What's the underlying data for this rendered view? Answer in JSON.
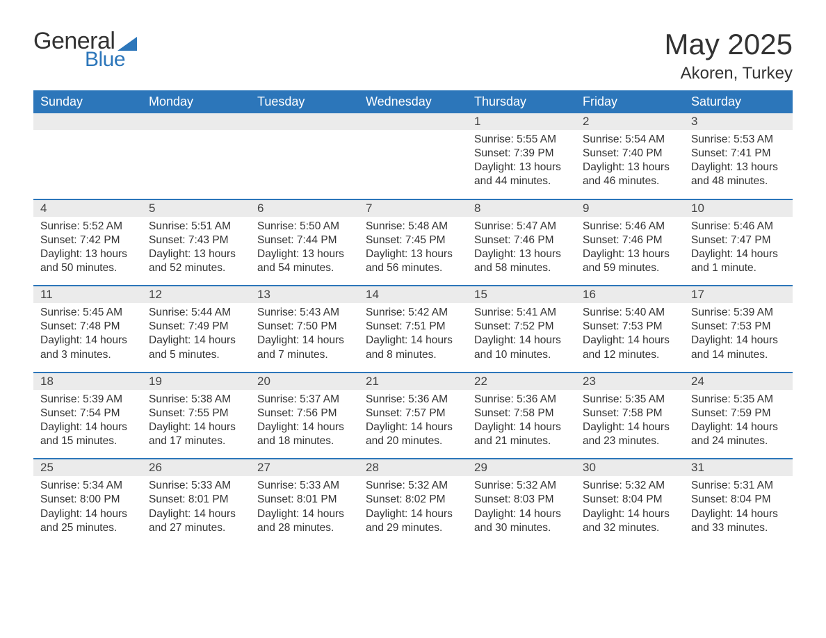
{
  "logo": {
    "word1": "General",
    "word2": "Blue"
  },
  "title": "May 2025",
  "location": "Akoren, Turkey",
  "weekdays": [
    "Sunday",
    "Monday",
    "Tuesday",
    "Wednesday",
    "Thursday",
    "Friday",
    "Saturday"
  ],
  "colors": {
    "header_bg": "#2c76ba",
    "header_text": "#ffffff",
    "daynum_bg": "#ebebeb",
    "row_border": "#2c76ba",
    "body_text": "#333333",
    "logo_dark": "#333333",
    "logo_blue": "#2c76ba"
  },
  "weeks": [
    [
      {
        "empty": true
      },
      {
        "empty": true
      },
      {
        "empty": true
      },
      {
        "empty": true
      },
      {
        "day": "1",
        "sunrise": "Sunrise: 5:55 AM",
        "sunset": "Sunset: 7:39 PM",
        "daylight1": "Daylight: 13 hours",
        "daylight2": "and 44 minutes."
      },
      {
        "day": "2",
        "sunrise": "Sunrise: 5:54 AM",
        "sunset": "Sunset: 7:40 PM",
        "daylight1": "Daylight: 13 hours",
        "daylight2": "and 46 minutes."
      },
      {
        "day": "3",
        "sunrise": "Sunrise: 5:53 AM",
        "sunset": "Sunset: 7:41 PM",
        "daylight1": "Daylight: 13 hours",
        "daylight2": "and 48 minutes."
      }
    ],
    [
      {
        "day": "4",
        "sunrise": "Sunrise: 5:52 AM",
        "sunset": "Sunset: 7:42 PM",
        "daylight1": "Daylight: 13 hours",
        "daylight2": "and 50 minutes."
      },
      {
        "day": "5",
        "sunrise": "Sunrise: 5:51 AM",
        "sunset": "Sunset: 7:43 PM",
        "daylight1": "Daylight: 13 hours",
        "daylight2": "and 52 minutes."
      },
      {
        "day": "6",
        "sunrise": "Sunrise: 5:50 AM",
        "sunset": "Sunset: 7:44 PM",
        "daylight1": "Daylight: 13 hours",
        "daylight2": "and 54 minutes."
      },
      {
        "day": "7",
        "sunrise": "Sunrise: 5:48 AM",
        "sunset": "Sunset: 7:45 PM",
        "daylight1": "Daylight: 13 hours",
        "daylight2": "and 56 minutes."
      },
      {
        "day": "8",
        "sunrise": "Sunrise: 5:47 AM",
        "sunset": "Sunset: 7:46 PM",
        "daylight1": "Daylight: 13 hours",
        "daylight2": "and 58 minutes."
      },
      {
        "day": "9",
        "sunrise": "Sunrise: 5:46 AM",
        "sunset": "Sunset: 7:46 PM",
        "daylight1": "Daylight: 13 hours",
        "daylight2": "and 59 minutes."
      },
      {
        "day": "10",
        "sunrise": "Sunrise: 5:46 AM",
        "sunset": "Sunset: 7:47 PM",
        "daylight1": "Daylight: 14 hours",
        "daylight2": "and 1 minute."
      }
    ],
    [
      {
        "day": "11",
        "sunrise": "Sunrise: 5:45 AM",
        "sunset": "Sunset: 7:48 PM",
        "daylight1": "Daylight: 14 hours",
        "daylight2": "and 3 minutes."
      },
      {
        "day": "12",
        "sunrise": "Sunrise: 5:44 AM",
        "sunset": "Sunset: 7:49 PM",
        "daylight1": "Daylight: 14 hours",
        "daylight2": "and 5 minutes."
      },
      {
        "day": "13",
        "sunrise": "Sunrise: 5:43 AM",
        "sunset": "Sunset: 7:50 PM",
        "daylight1": "Daylight: 14 hours",
        "daylight2": "and 7 minutes."
      },
      {
        "day": "14",
        "sunrise": "Sunrise: 5:42 AM",
        "sunset": "Sunset: 7:51 PM",
        "daylight1": "Daylight: 14 hours",
        "daylight2": "and 8 minutes."
      },
      {
        "day": "15",
        "sunrise": "Sunrise: 5:41 AM",
        "sunset": "Sunset: 7:52 PM",
        "daylight1": "Daylight: 14 hours",
        "daylight2": "and 10 minutes."
      },
      {
        "day": "16",
        "sunrise": "Sunrise: 5:40 AM",
        "sunset": "Sunset: 7:53 PM",
        "daylight1": "Daylight: 14 hours",
        "daylight2": "and 12 minutes."
      },
      {
        "day": "17",
        "sunrise": "Sunrise: 5:39 AM",
        "sunset": "Sunset: 7:53 PM",
        "daylight1": "Daylight: 14 hours",
        "daylight2": "and 14 minutes."
      }
    ],
    [
      {
        "day": "18",
        "sunrise": "Sunrise: 5:39 AM",
        "sunset": "Sunset: 7:54 PM",
        "daylight1": "Daylight: 14 hours",
        "daylight2": "and 15 minutes."
      },
      {
        "day": "19",
        "sunrise": "Sunrise: 5:38 AM",
        "sunset": "Sunset: 7:55 PM",
        "daylight1": "Daylight: 14 hours",
        "daylight2": "and 17 minutes."
      },
      {
        "day": "20",
        "sunrise": "Sunrise: 5:37 AM",
        "sunset": "Sunset: 7:56 PM",
        "daylight1": "Daylight: 14 hours",
        "daylight2": "and 18 minutes."
      },
      {
        "day": "21",
        "sunrise": "Sunrise: 5:36 AM",
        "sunset": "Sunset: 7:57 PM",
        "daylight1": "Daylight: 14 hours",
        "daylight2": "and 20 minutes."
      },
      {
        "day": "22",
        "sunrise": "Sunrise: 5:36 AM",
        "sunset": "Sunset: 7:58 PM",
        "daylight1": "Daylight: 14 hours",
        "daylight2": "and 21 minutes."
      },
      {
        "day": "23",
        "sunrise": "Sunrise: 5:35 AM",
        "sunset": "Sunset: 7:58 PM",
        "daylight1": "Daylight: 14 hours",
        "daylight2": "and 23 minutes."
      },
      {
        "day": "24",
        "sunrise": "Sunrise: 5:35 AM",
        "sunset": "Sunset: 7:59 PM",
        "daylight1": "Daylight: 14 hours",
        "daylight2": "and 24 minutes."
      }
    ],
    [
      {
        "day": "25",
        "sunrise": "Sunrise: 5:34 AM",
        "sunset": "Sunset: 8:00 PM",
        "daylight1": "Daylight: 14 hours",
        "daylight2": "and 25 minutes."
      },
      {
        "day": "26",
        "sunrise": "Sunrise: 5:33 AM",
        "sunset": "Sunset: 8:01 PM",
        "daylight1": "Daylight: 14 hours",
        "daylight2": "and 27 minutes."
      },
      {
        "day": "27",
        "sunrise": "Sunrise: 5:33 AM",
        "sunset": "Sunset: 8:01 PM",
        "daylight1": "Daylight: 14 hours",
        "daylight2": "and 28 minutes."
      },
      {
        "day": "28",
        "sunrise": "Sunrise: 5:32 AM",
        "sunset": "Sunset: 8:02 PM",
        "daylight1": "Daylight: 14 hours",
        "daylight2": "and 29 minutes."
      },
      {
        "day": "29",
        "sunrise": "Sunrise: 5:32 AM",
        "sunset": "Sunset: 8:03 PM",
        "daylight1": "Daylight: 14 hours",
        "daylight2": "and 30 minutes."
      },
      {
        "day": "30",
        "sunrise": "Sunrise: 5:32 AM",
        "sunset": "Sunset: 8:04 PM",
        "daylight1": "Daylight: 14 hours",
        "daylight2": "and 32 minutes."
      },
      {
        "day": "31",
        "sunrise": "Sunrise: 5:31 AM",
        "sunset": "Sunset: 8:04 PM",
        "daylight1": "Daylight: 14 hours",
        "daylight2": "and 33 minutes."
      }
    ]
  ]
}
